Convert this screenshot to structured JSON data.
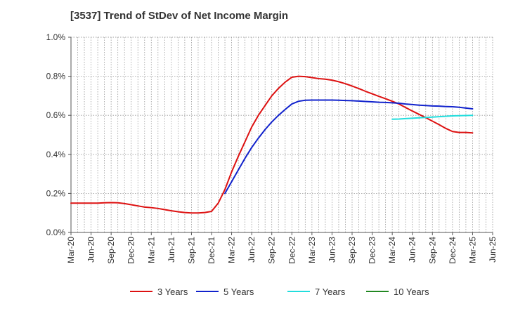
{
  "chart_data": {
    "type": "line",
    "title": "[3537]  Trend of StDev of Net Income Margin",
    "xlabel": "",
    "ylabel": "",
    "ylim": [
      0,
      1.0
    ],
    "y_ticks": [
      "0.0%",
      "0.2%",
      "0.4%",
      "0.6%",
      "0.8%",
      "1.0%"
    ],
    "y_tick_values": [
      0,
      0.2,
      0.4,
      0.6,
      0.8,
      1.0
    ],
    "x_ticks": [
      "Mar-20",
      "Jun-20",
      "Sep-20",
      "Dec-20",
      "Mar-21",
      "Jun-21",
      "Sep-21",
      "Dec-21",
      "Mar-22",
      "Jun-22",
      "Sep-22",
      "Dec-22",
      "Mar-23",
      "Jun-23",
      "Sep-23",
      "Dec-23",
      "Mar-24",
      "Jun-24",
      "Sep-24",
      "Dec-24",
      "Mar-25",
      "Jun-25"
    ],
    "grid": true,
    "legend_position": "bottom",
    "x_start": "2020-03",
    "series": [
      {
        "name": "3 Years",
        "color": "#dd1111",
        "x": [
          "2020-03",
          "2020-04",
          "2020-05",
          "2020-06",
          "2020-07",
          "2020-08",
          "2020-09",
          "2020-10",
          "2020-11",
          "2020-12",
          "2021-01",
          "2021-02",
          "2021-03",
          "2021-04",
          "2021-05",
          "2021-06",
          "2021-07",
          "2021-08",
          "2021-09",
          "2021-10",
          "2021-11",
          "2021-12",
          "2022-01",
          "2022-02",
          "2022-03",
          "2022-04",
          "2022-05",
          "2022-06",
          "2022-07",
          "2022-08",
          "2022-09",
          "2022-10",
          "2022-11",
          "2022-12",
          "2023-01",
          "2023-02",
          "2023-03",
          "2023-04",
          "2023-05",
          "2023-06",
          "2023-07",
          "2023-08",
          "2023-09",
          "2023-10",
          "2023-11",
          "2023-12",
          "2024-01",
          "2024-02",
          "2024-03",
          "2024-04",
          "2024-05",
          "2024-06",
          "2024-07",
          "2024-08",
          "2024-09",
          "2024-10",
          "2024-11",
          "2024-12",
          "2025-01",
          "2025-02",
          "2025-03"
        ],
        "values": [
          0.15,
          0.15,
          0.15,
          0.15,
          0.15,
          0.152,
          0.153,
          0.152,
          0.148,
          0.142,
          0.136,
          0.13,
          0.127,
          0.123,
          0.117,
          0.111,
          0.106,
          0.102,
          0.1,
          0.1,
          0.102,
          0.108,
          0.15,
          0.22,
          0.31,
          0.39,
          0.465,
          0.54,
          0.6,
          0.65,
          0.7,
          0.738,
          0.77,
          0.795,
          0.8,
          0.798,
          0.793,
          0.788,
          0.785,
          0.78,
          0.772,
          0.762,
          0.75,
          0.737,
          0.723,
          0.71,
          0.697,
          0.685,
          0.672,
          0.658,
          0.64,
          0.622,
          0.605,
          0.588,
          0.57,
          0.552,
          0.533,
          0.517,
          0.512,
          0.512,
          0.51
        ]
      },
      {
        "name": "5 Years",
        "color": "#1122cc",
        "x": [
          "2022-02",
          "2022-03",
          "2022-04",
          "2022-05",
          "2022-06",
          "2022-07",
          "2022-08",
          "2022-09",
          "2022-10",
          "2022-11",
          "2022-12",
          "2023-01",
          "2023-02",
          "2023-03",
          "2023-04",
          "2023-05",
          "2023-06",
          "2023-07",
          "2023-08",
          "2023-09",
          "2023-10",
          "2023-11",
          "2023-12",
          "2024-01",
          "2024-02",
          "2024-03",
          "2024-04",
          "2024-05",
          "2024-06",
          "2024-07",
          "2024-08",
          "2024-09",
          "2024-10",
          "2024-11",
          "2024-12",
          "2025-01",
          "2025-02",
          "2025-03"
        ],
        "values": [
          0.2,
          0.26,
          0.32,
          0.38,
          0.435,
          0.483,
          0.527,
          0.566,
          0.6,
          0.63,
          0.658,
          0.672,
          0.677,
          0.678,
          0.678,
          0.678,
          0.678,
          0.677,
          0.676,
          0.675,
          0.673,
          0.671,
          0.669,
          0.667,
          0.666,
          0.664,
          0.662,
          0.658,
          0.655,
          0.652,
          0.65,
          0.648,
          0.647,
          0.645,
          0.644,
          0.641,
          0.637,
          0.633
        ]
      },
      {
        "name": "7 Years",
        "color": "#22dddd",
        "x": [
          "2024-03",
          "2024-04",
          "2024-05",
          "2024-06",
          "2024-07",
          "2024-08",
          "2024-09",
          "2024-10",
          "2024-11",
          "2024-12",
          "2025-01",
          "2025-02",
          "2025-03"
        ],
        "values": [
          0.58,
          0.581,
          0.583,
          0.585,
          0.587,
          0.589,
          0.591,
          0.593,
          0.595,
          0.597,
          0.598,
          0.599,
          0.6
        ]
      },
      {
        "name": "10 Years",
        "color": "#228822",
        "x": [],
        "values": []
      }
    ]
  }
}
